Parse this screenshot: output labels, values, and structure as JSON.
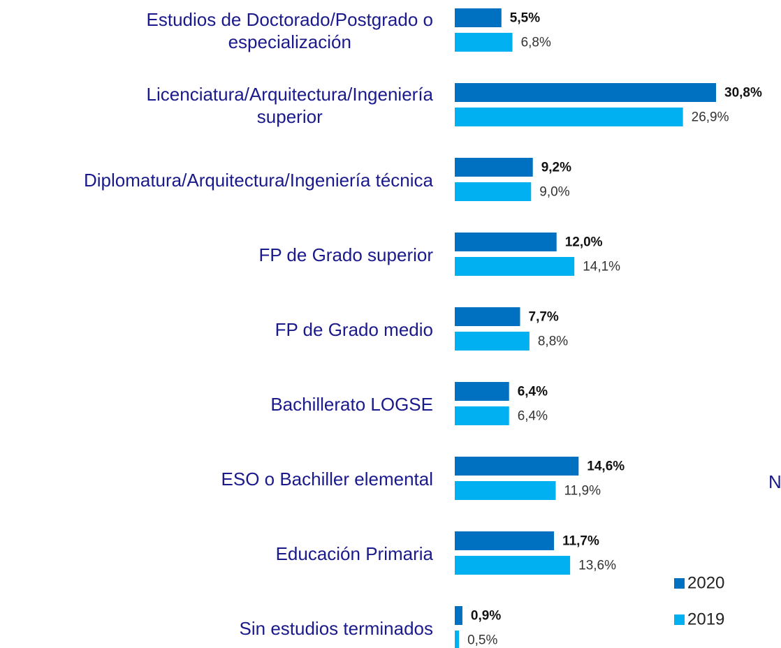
{
  "chart_data": {
    "type": "bar",
    "orientation": "horizontal",
    "categories": [
      "Estudios de Doctorado/Postgrado o\nespecialización",
      "Licenciatura/Arquitectura/Ingeniería\nsuperior",
      "Diplomatura/Arquitectura/Ingeniería técnica",
      "FP de Grado superior",
      "FP de Grado medio",
      "Bachillerato LOGSE",
      "ESO o Bachiller elemental",
      "Educación Primaria",
      "Sin estudios terminados"
    ],
    "series": [
      {
        "name": "2020",
        "color": "#0070c0",
        "values": [
          5.5,
          30.8,
          9.2,
          12.0,
          7.7,
          6.4,
          14.6,
          11.7,
          0.9
        ],
        "value_labels": [
          "5,5%",
          "30,8%",
          "9,2%",
          "12,0%",
          "7,7%",
          "6,4%",
          "14,6%",
          "11,7%",
          "0,9%"
        ]
      },
      {
        "name": "2019",
        "color": "#00b0f0",
        "values": [
          6.8,
          26.9,
          9.0,
          14.1,
          8.8,
          6.4,
          11.9,
          13.6,
          0.5
        ],
        "value_labels": [
          "6,8%",
          "26,9%",
          "9,0%",
          "14,1%",
          "8,8%",
          "6,4%",
          "11,9%",
          "13,6%",
          "0,5%"
        ]
      }
    ],
    "annotations": [
      "N"
    ],
    "legend": "bottom-right"
  }
}
